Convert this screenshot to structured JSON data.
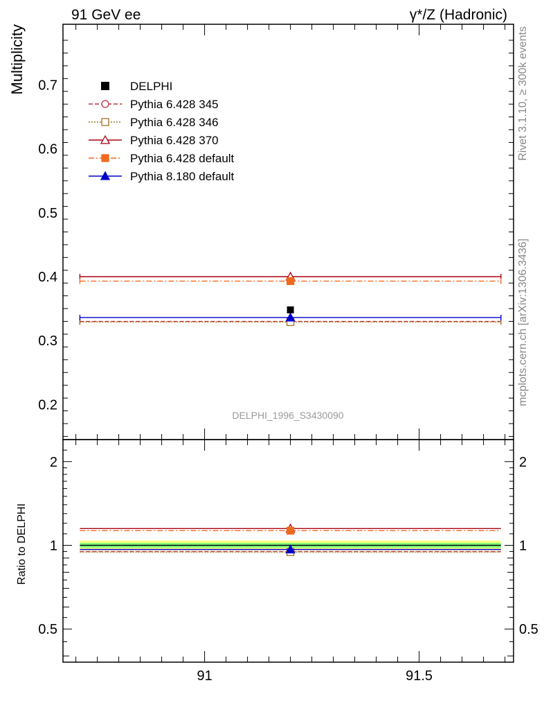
{
  "header": {
    "left_title": "91 GeV ee",
    "right_title": "γ*/Z (Hadronic)"
  },
  "side_labels": {
    "rivet": "Rivet 3.1.10, ≥ 300k events",
    "mcplots": "mcplots.cern.ch [arXiv:1306.3436]"
  },
  "chart_data": {
    "type": "scatter",
    "analysis_label": "DELPHI_1996_S3430090",
    "xlabel": "",
    "ylabel": "Multiplicity",
    "ratio_ylabel": "Ratio to DELPHI",
    "xlim": [
      90.67,
      91.72
    ],
    "ylim": [
      0.145,
      0.795
    ],
    "ratio_ylim": [
      0.38,
      2.4
    ],
    "x_ticks": [
      91,
      91.5
    ],
    "x_tick_labels": [
      "91",
      "91.5"
    ],
    "y_ticks": [
      0.2,
      0.3,
      0.4,
      0.5,
      0.6,
      0.7
    ],
    "y_tick_labels": [
      "0.2",
      "0.3",
      "0.4",
      "0.5",
      "0.6",
      "0.7"
    ],
    "ratio_ticks": [
      0.5,
      1,
      2
    ],
    "ratio_tick_labels": [
      "0.5",
      "1",
      "2"
    ],
    "bin": [
      90.69,
      91.71
    ],
    "x": 91.2,
    "data": {
      "name": "DELPHI",
      "value": 0.348,
      "color": "#000000"
    },
    "ratio_bands": [
      {
        "low": 0.96,
        "high": 1.04,
        "color": "#ffff80"
      },
      {
        "low": 0.98,
        "high": 1.02,
        "color": "#80ff80"
      }
    ],
    "series": [
      {
        "name": "Pythia 6.428 345",
        "value": 0.33,
        "ratio": 0.949,
        "color": "#c0303a",
        "marker": "circle-open",
        "dash": "6,3"
      },
      {
        "name": "Pythia 6.428 346",
        "value": 0.329,
        "ratio": 0.946,
        "color": "#a07020",
        "marker": "square-open",
        "dash": "2,2"
      },
      {
        "name": "Pythia 6.428 370",
        "value": 0.4,
        "ratio": 1.149,
        "color": "#aa0010",
        "marker": "triangle-open",
        "dash": ""
      },
      {
        "name": "Pythia 6.428 default",
        "value": 0.393,
        "ratio": 1.129,
        "color": "#f06a1e",
        "marker": "square-filled",
        "dash": "8,3,2,3"
      },
      {
        "name": "Pythia 8.180 default",
        "value": 0.336,
        "ratio": 0.966,
        "color": "#0000cc",
        "marker": "triangle-filled",
        "dash": ""
      }
    ]
  }
}
